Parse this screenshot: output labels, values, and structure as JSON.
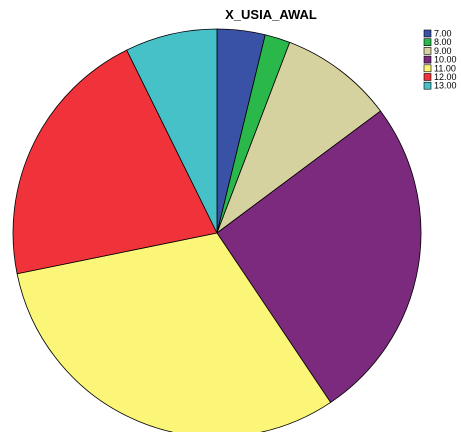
{
  "chart_data": {
    "type": "pie",
    "title": "X_USIA_AWAL",
    "legend_position": "top-right",
    "start_angle_deg": 0,
    "direction": "clockwise",
    "slices": [
      {
        "label": "7.00",
        "value": 3.8,
        "color": "#3a52a6"
      },
      {
        "label": "8.00",
        "value": 2.0,
        "color": "#2ab84a"
      },
      {
        "label": "9.00",
        "value": 9.0,
        "color": "#d6d2a0"
      },
      {
        "label": "10.00",
        "value": 25.8,
        "color": "#7b2a7e"
      },
      {
        "label": "11.00",
        "value": 31.2,
        "color": "#fbf578"
      },
      {
        "label": "12.00",
        "value": 20.9,
        "color": "#f0323a"
      },
      {
        "label": "13.00",
        "value": 7.3,
        "color": "#47c1c8"
      }
    ]
  }
}
